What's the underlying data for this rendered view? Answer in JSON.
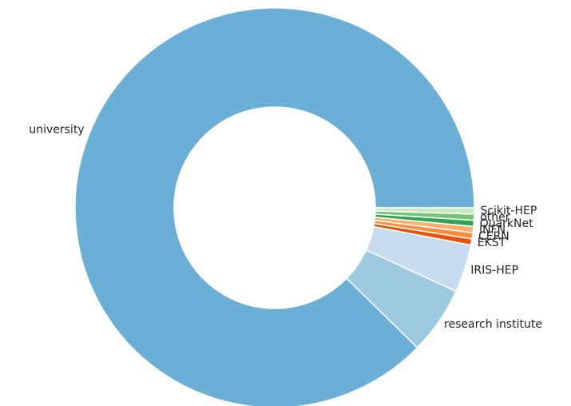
{
  "chart_data": {
    "type": "pie",
    "donut": true,
    "title": "",
    "start_angle_deg": 0,
    "direction": "counterclockwise",
    "slices": [
      {
        "label": "university",
        "value": 88.1,
        "color": "#6baed6"
      },
      {
        "label": "research institute",
        "value": 5.5,
        "color": "#9ecae1"
      },
      {
        "label": "IRIS-HEP",
        "value": 3.9,
        "color": "#c6dbef"
      },
      {
        "label": "EKST",
        "value": 0.5,
        "color": "#e6550d"
      },
      {
        "label": "CERN",
        "value": 0.5,
        "color": "#fd8d3c"
      },
      {
        "label": "INFN",
        "value": 0.5,
        "color": "#fdae6b"
      },
      {
        "label": "QuarkNet",
        "value": 0.5,
        "color": "#31a354"
      },
      {
        "label": "other",
        "value": 0.5,
        "color": "#74c476"
      },
      {
        "label": "Scikit-HEP",
        "value": 0.5,
        "color": "#c7e9c0"
      }
    ]
  }
}
